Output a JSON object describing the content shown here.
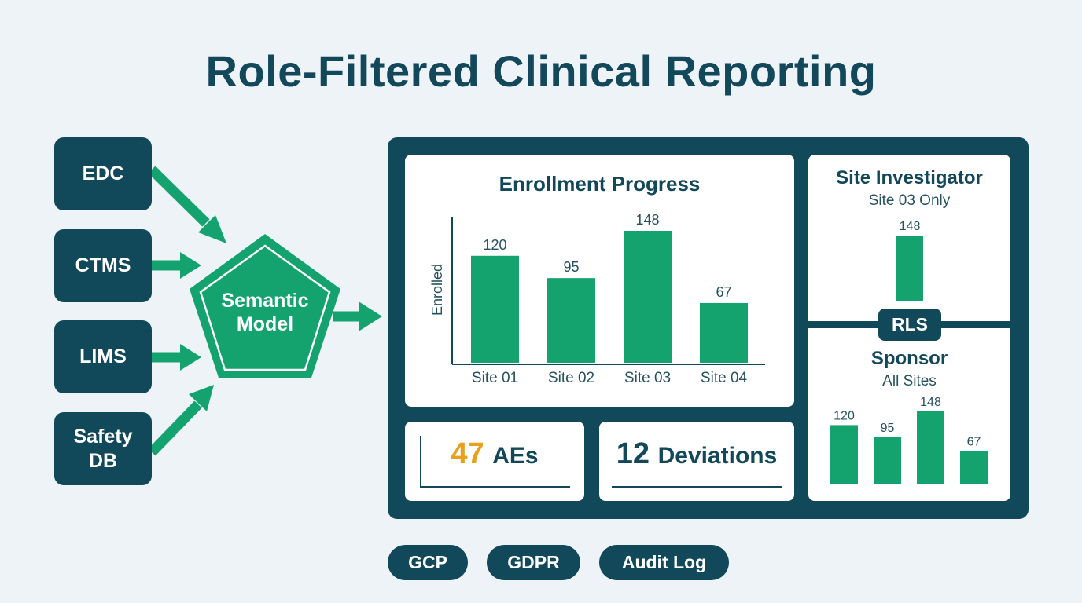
{
  "title": "Role-Filtered Clinical Reporting",
  "sources": [
    {
      "label": "EDC"
    },
    {
      "label": "CTMS"
    },
    {
      "label": "LIMS"
    },
    {
      "label": "Safety\nDB"
    }
  ],
  "semantic_model": {
    "label": "Semantic\nModel"
  },
  "colors": {
    "navy": "#11495a",
    "green": "#14a36f",
    "amber": "#e9a11b",
    "background": "#eef3f8"
  },
  "chart_data": [
    {
      "type": "bar",
      "title": "Enrollment Progress",
      "ylabel": "Enrolled",
      "xlabel": "",
      "categories": [
        "Site 01",
        "Site 02",
        "Site 03",
        "Site 04"
      ],
      "values": [
        120,
        95,
        148,
        67
      ],
      "data_labels": [
        "120",
        "95",
        "148",
        "67"
      ]
    },
    {
      "type": "bar",
      "title": "Site Investigator",
      "subtitle": "Site 03 Only",
      "values": [
        148
      ],
      "data_labels": [
        "148"
      ]
    },
    {
      "type": "bar",
      "title": "Sponsor",
      "subtitle": "All Sites",
      "values": [
        120,
        95,
        148,
        67
      ],
      "data_labels": [
        "120",
        "95",
        "148",
        "67"
      ]
    }
  ],
  "kpis": {
    "ae": {
      "value": "47",
      "label": "AEs"
    },
    "deviations": {
      "value": "12",
      "label": "Deviations"
    }
  },
  "rls_label": "RLS",
  "pills": [
    {
      "label": "GCP"
    },
    {
      "label": "GDPR"
    },
    {
      "label": "Audit Log"
    }
  ]
}
